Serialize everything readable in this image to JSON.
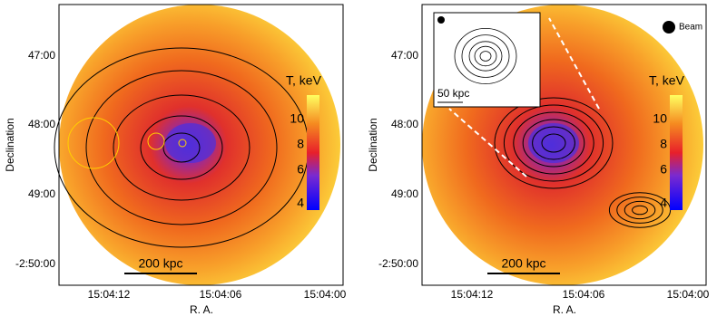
{
  "panels": [
    {
      "y_axis_label": "Declination",
      "x_axis_label": "R. A.",
      "y_ticks": [
        "47:00",
        "48:00",
        "49:00",
        "-2:50:00"
      ],
      "x_ticks": [
        "15:04:12",
        "15:04:06",
        "15:04:00"
      ],
      "colorbar_title": "T, keV",
      "colorbar_ticks": [
        "10",
        "8",
        "6",
        "4"
      ],
      "scale_bar": "200 kpc"
    },
    {
      "y_axis_label": "Declination",
      "x_axis_label": "R. A.",
      "y_ticks": [
        "47:00",
        "48:00",
        "49:00",
        "-2:50:00"
      ],
      "x_ticks": [
        "15:04:12",
        "15:04:06",
        "15:04:00"
      ],
      "colorbar_title": "T, keV",
      "colorbar_ticks": [
        "10",
        "8",
        "6",
        "4"
      ],
      "scale_bar": "200 kpc",
      "beam_label": "Beam",
      "inset_scale": "50 kpc"
    }
  ]
}
